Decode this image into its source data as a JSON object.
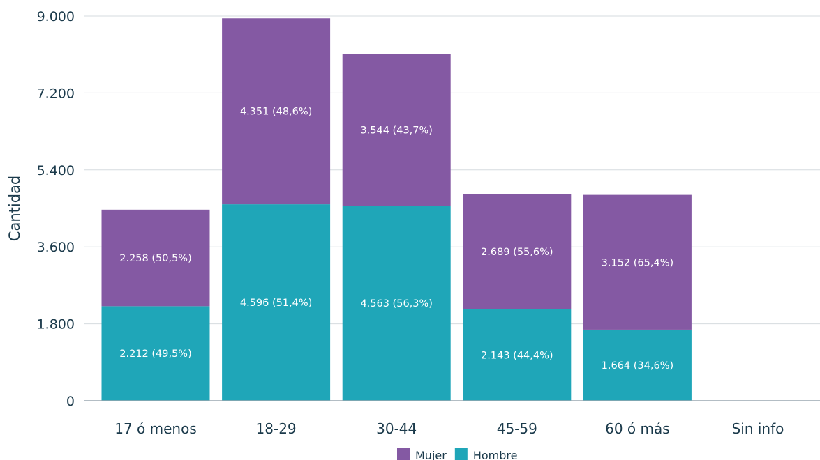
{
  "chart_data": {
    "type": "bar",
    "stacked": true,
    "categories": [
      "17 ó menos",
      "18-29",
      "30-44",
      "45-59",
      "60 ó más",
      "Sin info"
    ],
    "series": [
      {
        "name": "Hombre",
        "color": "#1fa6b8",
        "values": [
          2212,
          4596,
          4563,
          2143,
          1664,
          0
        ],
        "labels": [
          "2.212 (49,5%)",
          "4.596 (51,4%)",
          "4.563 (56,3%)",
          "2.143 (44,4%)",
          "1.664 (34,6%)",
          ""
        ]
      },
      {
        "name": "Mujer",
        "color": "#8459a3",
        "values": [
          2258,
          4351,
          3544,
          2689,
          3152,
          0
        ],
        "labels": [
          "2.258 (50,5%)",
          "4.351 (48,6%)",
          "3.544 (43,7%)",
          "2.689 (55,6%)",
          "3.152 (65,4%)",
          ""
        ]
      }
    ],
    "ylabel": "Cantidad",
    "xlabel": "",
    "ylim": [
      0,
      9000
    ],
    "yticks": [
      0,
      1800,
      3600,
      5400,
      7200,
      9000
    ],
    "ytick_labels": [
      "0",
      "1.800",
      "3.600",
      "5.400",
      "7.200",
      "9.000"
    ],
    "grid": true,
    "legend": {
      "position": "bottom",
      "items": [
        {
          "label": "Mujer",
          "color": "#8459a3"
        },
        {
          "label": "Hombre",
          "color": "#1fa6b8"
        }
      ]
    }
  }
}
